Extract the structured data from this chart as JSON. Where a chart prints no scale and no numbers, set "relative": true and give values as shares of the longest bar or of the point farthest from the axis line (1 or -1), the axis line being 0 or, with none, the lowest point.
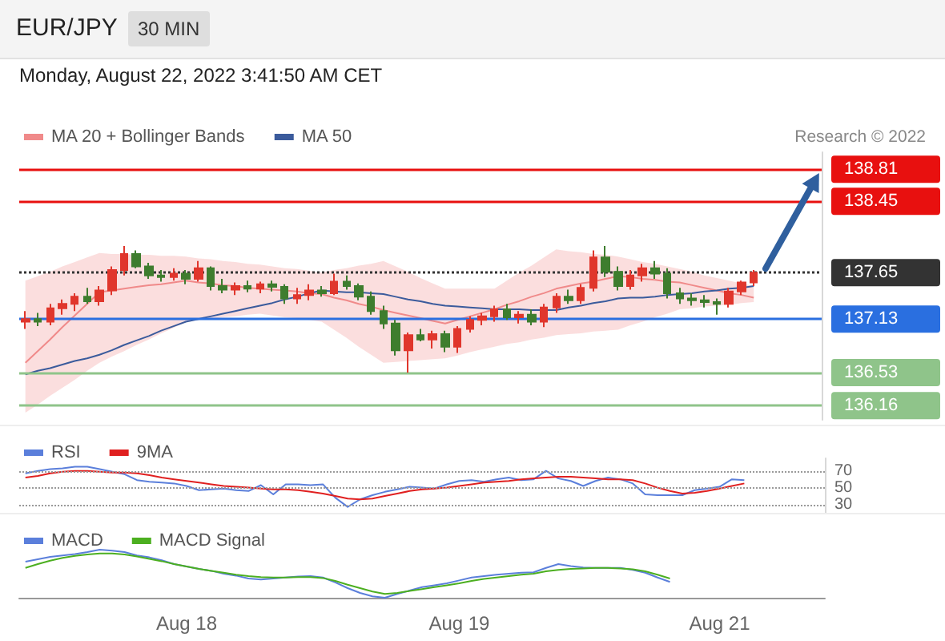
{
  "chart_data": [
    {
      "type": "candlestick",
      "title": "EUR/JPY",
      "subtitle": "30 MIN",
      "annotations": [
        "Monday, August 22, 2022 3:41:50 AM CET",
        "Research © 2022"
      ],
      "categories": [
        null,
        null,
        null,
        null,
        null,
        null,
        null,
        null,
        null,
        null,
        null,
        null,
        null,
        null,
        null,
        null,
        null,
        null,
        null,
        null,
        null,
        null,
        null,
        null,
        null,
        null,
        null,
        null,
        null,
        null,
        null,
        null,
        null,
        null,
        null,
        null,
        null,
        null,
        null,
        null,
        null,
        null,
        null,
        null,
        null,
        null,
        null,
        null,
        null,
        null,
        null,
        null,
        null,
        null,
        null,
        null,
        null,
        null,
        null,
        null
      ],
      "ohlc": [
        [
          137.1,
          137.22,
          137.02,
          137.13
        ],
        [
          137.13,
          137.2,
          137.05,
          137.1
        ],
        [
          137.1,
          137.3,
          137.06,
          137.25
        ],
        [
          137.25,
          137.35,
          137.18,
          137.3
        ],
        [
          137.3,
          137.42,
          137.22,
          137.38
        ],
        [
          137.38,
          137.48,
          137.3,
          137.33
        ],
        [
          137.33,
          137.5,
          137.28,
          137.45
        ],
        [
          137.45,
          137.72,
          137.4,
          137.68
        ],
        [
          137.68,
          137.95,
          137.62,
          137.86
        ],
        [
          137.86,
          137.9,
          137.7,
          137.72
        ],
        [
          137.72,
          137.76,
          137.58,
          137.62
        ],
        [
          137.62,
          137.68,
          137.55,
          137.6
        ],
        [
          137.6,
          137.7,
          137.56,
          137.64
        ],
        [
          137.64,
          137.68,
          137.52,
          137.58
        ],
        [
          137.58,
          137.78,
          137.55,
          137.7
        ],
        [
          137.7,
          137.72,
          137.45,
          137.5
        ],
        [
          137.5,
          137.58,
          137.42,
          137.46
        ],
        [
          137.46,
          137.54,
          137.4,
          137.5
        ],
        [
          137.5,
          137.56,
          137.43,
          137.47
        ],
        [
          137.47,
          137.55,
          137.42,
          137.52
        ],
        [
          137.52,
          137.56,
          137.44,
          137.49
        ],
        [
          137.49,
          137.52,
          137.3,
          137.36
        ],
        [
          137.36,
          137.48,
          137.3,
          137.4
        ],
        [
          137.4,
          137.52,
          137.34,
          137.45
        ],
        [
          137.45,
          137.5,
          137.38,
          137.42
        ],
        [
          137.42,
          137.64,
          137.4,
          137.55
        ],
        [
          137.55,
          137.62,
          137.46,
          137.5
        ],
        [
          137.5,
          137.53,
          137.34,
          137.38
        ],
        [
          137.38,
          137.44,
          137.18,
          137.22
        ],
        [
          137.22,
          137.28,
          137.02,
          137.08
        ],
        [
          137.08,
          137.12,
          136.72,
          136.78
        ],
        [
          136.78,
          136.98,
          136.53,
          136.95
        ],
        [
          136.95,
          137.02,
          136.88,
          136.9
        ],
        [
          136.9,
          137.0,
          136.8,
          136.96
        ],
        [
          136.96,
          137.0,
          136.76,
          136.82
        ],
        [
          136.82,
          137.05,
          136.75,
          137.02
        ],
        [
          137.02,
          137.16,
          136.98,
          137.12
        ],
        [
          137.12,
          137.2,
          137.06,
          137.16
        ],
        [
          137.16,
          137.28,
          137.1,
          137.24
        ],
        [
          137.24,
          137.3,
          137.12,
          137.15
        ],
        [
          137.15,
          137.22,
          137.08,
          137.18
        ],
        [
          137.18,
          137.24,
          137.06,
          137.1
        ],
        [
          137.1,
          137.3,
          137.04,
          137.26
        ],
        [
          137.26,
          137.42,
          137.2,
          137.38
        ],
        [
          137.38,
          137.46,
          137.3,
          137.34
        ],
        [
          137.34,
          137.52,
          137.3,
          137.48
        ],
        [
          137.48,
          137.9,
          137.44,
          137.82
        ],
        [
          137.82,
          137.95,
          137.6,
          137.66
        ],
        [
          137.66,
          137.72,
          137.45,
          137.5
        ],
        [
          137.5,
          137.68,
          137.46,
          137.62
        ],
        [
          137.62,
          137.75,
          137.55,
          137.7
        ],
        [
          137.7,
          137.78,
          137.58,
          137.64
        ],
        [
          137.64,
          137.7,
          137.36,
          137.42
        ],
        [
          137.42,
          137.48,
          137.3,
          137.36
        ],
        [
          137.36,
          137.42,
          137.28,
          137.34
        ],
        [
          137.34,
          137.4,
          137.26,
          137.32
        ],
        [
          137.32,
          137.36,
          137.18,
          137.3
        ],
        [
          137.3,
          137.48,
          137.26,
          137.44
        ],
        [
          137.44,
          137.56,
          137.4,
          137.54
        ],
        [
          137.54,
          137.68,
          137.5,
          137.65
        ]
      ],
      "series": [
        {
          "name": "MA 20 + Bollinger Bands",
          "type": "line",
          "color": "#f08a8a",
          "values": [
            136.64,
            136.77,
            136.9,
            137.04,
            137.17,
            137.3,
            137.43,
            137.45,
            137.47,
            137.49,
            137.51,
            137.52,
            137.54,
            137.56,
            137.54,
            137.53,
            137.51,
            137.5,
            137.48,
            137.47,
            137.46,
            137.45,
            137.44,
            137.42,
            137.41,
            137.37,
            137.34,
            137.3,
            137.27,
            137.23,
            137.2,
            137.17,
            137.14,
            137.11,
            137.08,
            137.12,
            137.16,
            137.2,
            137.24,
            137.29,
            137.33,
            137.38,
            137.42,
            137.47,
            137.5,
            137.53,
            137.55,
            137.58,
            137.61,
            137.6,
            137.58,
            137.57,
            137.55,
            137.54,
            137.51,
            137.48,
            137.45,
            137.42,
            137.4,
            137.37
          ],
          "upper": [
            137.56,
            137.61,
            137.66,
            137.72,
            137.77,
            137.82,
            137.87,
            137.86,
            137.86,
            137.85,
            137.85,
            137.84,
            137.84,
            137.83,
            137.81,
            137.8,
            137.78,
            137.77,
            137.75,
            137.74,
            137.72,
            137.7,
            137.69,
            137.67,
            137.65,
            137.68,
            137.7,
            137.73,
            137.75,
            137.78,
            137.72,
            137.66,
            137.59,
            137.53,
            137.47,
            137.47,
            137.47,
            137.47,
            137.47,
            137.56,
            137.65,
            137.73,
            137.82,
            137.91,
            137.89,
            137.88,
            137.86,
            137.85,
            137.83,
            137.8,
            137.77,
            137.75,
            137.72,
            137.69,
            137.66,
            137.62,
            137.59,
            137.56,
            137.53,
            137.5
          ],
          "lower": [
            136.08,
            136.17,
            136.27,
            136.36,
            136.45,
            136.55,
            136.64,
            136.71,
            136.77,
            136.84,
            136.9,
            136.97,
            137.03,
            137.1,
            137.12,
            137.13,
            137.15,
            137.16,
            137.18,
            137.19,
            137.17,
            137.15,
            137.14,
            137.12,
            137.1,
            137.01,
            136.92,
            136.82,
            136.73,
            136.64,
            136.65,
            136.66,
            136.67,
            136.68,
            136.69,
            136.72,
            136.76,
            136.79,
            136.82,
            136.85,
            136.87,
            136.9,
            136.92,
            136.95,
            136.96,
            136.97,
            136.99,
            137.0,
            137.01,
            137.06,
            137.1,
            137.15,
            137.19,
            137.24,
            137.25,
            137.27,
            137.28,
            137.29,
            137.31,
            137.32
          ]
        },
        {
          "name": "MA 50",
          "type": "line",
          "color": "#3b5b9c",
          "values": [
            136.51,
            136.55,
            136.58,
            136.62,
            136.66,
            136.69,
            136.73,
            136.78,
            136.84,
            136.89,
            136.94,
            137.0,
            137.05,
            137.1,
            137.13,
            137.16,
            137.19,
            137.22,
            137.25,
            137.28,
            137.31,
            137.35,
            137.38,
            137.42,
            137.45,
            137.44,
            137.43,
            137.43,
            137.42,
            137.41,
            137.38,
            137.35,
            137.33,
            137.3,
            137.28,
            137.27,
            137.26,
            137.25,
            137.24,
            137.24,
            137.24,
            137.23,
            137.23,
            137.23,
            137.26,
            137.28,
            137.31,
            137.33,
            137.36,
            137.37,
            137.37,
            137.38,
            137.4,
            137.41,
            137.42,
            137.44,
            137.45,
            137.47,
            137.48,
            137.5
          ]
        }
      ],
      "ylim": [
        136.0,
        139.0
      ],
      "yticks": [
        136.16,
        136.53,
        137.13,
        137.65,
        138.45,
        138.81
      ],
      "ref_lines": [
        {
          "axis": "y",
          "value": 138.81,
          "color": "#e8100f"
        },
        {
          "axis": "y",
          "value": 138.45,
          "color": "#e8100f"
        },
        {
          "axis": "y",
          "value": 137.65,
          "color": "#333333",
          "line_style": "dotted"
        },
        {
          "axis": "y",
          "value": 137.13,
          "color": "#2a6fe0"
        },
        {
          "axis": "y",
          "value": 136.53,
          "color": "#8fc48a"
        },
        {
          "axis": "y",
          "value": 136.16,
          "color": "#8fc48a"
        }
      ],
      "tick_labels": "y",
      "legend": "top left",
      "marker": "none"
    },
    {
      "type": "line",
      "categories": [
        null,
        null,
        null,
        null,
        null,
        null,
        null,
        null,
        null,
        null,
        null,
        null,
        null,
        null,
        null,
        null,
        null,
        null,
        null,
        null,
        null,
        null,
        null,
        null,
        null,
        null,
        null,
        null,
        null,
        null,
        null,
        null,
        null,
        null,
        null,
        null,
        null,
        null,
        null,
        null,
        null,
        null,
        null,
        null,
        null,
        null,
        null,
        null,
        null,
        null,
        null,
        null,
        null,
        null,
        null,
        null,
        null,
        null,
        null,
        null
      ],
      "series": [
        {
          "name": "RSI",
          "color": "#5b7fdb",
          "values": [
            67,
            70,
            72,
            73,
            75,
            75,
            72,
            69,
            66,
            59,
            57,
            56,
            55,
            52,
            47,
            48,
            49,
            47,
            46,
            53,
            42,
            54,
            54,
            53,
            54,
            38,
            27,
            36,
            41,
            45,
            48,
            51,
            50,
            49,
            54,
            58,
            59,
            57,
            60,
            62,
            59,
            60,
            70,
            61,
            58,
            52,
            58,
            62,
            60,
            55,
            42,
            41,
            41,
            41,
            47,
            49,
            51,
            60,
            59,
            null
          ]
        },
        {
          "name": "9MA",
          "color": "#e02020",
          "values": [
            62,
            64,
            67,
            69,
            70,
            70,
            69,
            68,
            68,
            67,
            65,
            62,
            60,
            58,
            56,
            54,
            52,
            51,
            50,
            49,
            48,
            48,
            47,
            45,
            43,
            40,
            37,
            36,
            37,
            40,
            43,
            46,
            48,
            49,
            50,
            52,
            54,
            56,
            57,
            58,
            60,
            61,
            62,
            63,
            63,
            62,
            61,
            60,
            60,
            59,
            55,
            50,
            46,
            43,
            44,
            46,
            49,
            52,
            55,
            null
          ]
        }
      ],
      "ylim": [
        20,
        85
      ],
      "yticks": [
        30,
        50,
        70
      ],
      "grid": "y",
      "tick_labels": "y",
      "legend": "top left",
      "marker": "none"
    },
    {
      "type": "line",
      "categories": [
        null,
        null,
        null,
        null,
        null,
        null,
        null,
        null,
        null,
        null,
        null,
        null,
        null,
        "Aug 18",
        null,
        null,
        null,
        null,
        null,
        null,
        null,
        null,
        null,
        null,
        null,
        null,
        null,
        null,
        null,
        null,
        null,
        null,
        null,
        null,
        null,
        "Aug 19",
        null,
        null,
        null,
        null,
        null,
        null,
        null,
        null,
        null,
        null,
        null,
        null,
        null,
        null,
        null,
        null,
        null,
        null,
        null,
        null,
        "Aug 21",
        null,
        null,
        null
      ],
      "series": [
        {
          "name": "MACD",
          "color": "#5b7fdb",
          "values": [
            0.75,
            0.8,
            0.85,
            0.88,
            0.91,
            0.95,
            1.0,
            0.98,
            0.95,
            0.88,
            0.84,
            0.78,
            0.7,
            0.65,
            0.6,
            0.56,
            0.5,
            0.46,
            0.4,
            0.38,
            0.4,
            0.42,
            0.44,
            0.45,
            0.42,
            0.32,
            0.2,
            0.1,
            0.03,
            0,
            0.08,
            0.15,
            0.22,
            0.26,
            0.3,
            0.36,
            0.42,
            0.45,
            0.48,
            0.5,
            0.52,
            0.53,
            0.62,
            0.7,
            0.66,
            0.63,
            0.62,
            0.62,
            0.62,
            0.58,
            0.52,
            0.42,
            0.33,
            null,
            null,
            null,
            null,
            null,
            null,
            null
          ]
        },
        {
          "name": "MACD Signal",
          "color": "#4caf20",
          "values": [
            0.62,
            0.7,
            0.77,
            0.83,
            0.87,
            0.9,
            0.92,
            0.92,
            0.9,
            0.86,
            0.81,
            0.76,
            0.7,
            0.65,
            0.6,
            0.56,
            0.52,
            0.48,
            0.45,
            0.43,
            0.42,
            0.42,
            0.43,
            0.43,
            0.41,
            0.35,
            0.27,
            0.2,
            0.13,
            0.08,
            0.1,
            0.14,
            0.18,
            0.22,
            0.26,
            0.3,
            0.35,
            0.39,
            0.42,
            0.45,
            0.48,
            0.5,
            0.55,
            0.58,
            0.6,
            0.61,
            0.62,
            0.62,
            0.61,
            0.59,
            0.55,
            0.48,
            0.4,
            null,
            null,
            null,
            null,
            null,
            null,
            null
          ]
        }
      ],
      "relative": true,
      "tick_labels": "x",
      "legend": "top left",
      "marker": "none"
    }
  ]
}
